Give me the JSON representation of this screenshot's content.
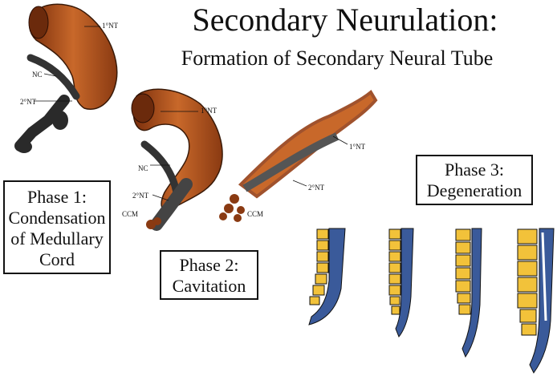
{
  "title": "Secondary Neurulation:",
  "subtitle": "Formation of Secondary Neural Tube",
  "phases": {
    "phase1": {
      "line1": "Phase 1:",
      "line2": "Condensation",
      "line3": "of Medullary",
      "line4": "Cord"
    },
    "phase2": {
      "line1": "Phase 2:",
      "line2": "Cavitation"
    },
    "phase3": {
      "line1": "Phase 3:",
      "line2": "Degeneration"
    }
  },
  "labels": {
    "primary_nt": "1°NT",
    "secondary_nt": "2°NT",
    "nc": "NC",
    "ccm": "CCM"
  },
  "colors": {
    "neural_tube": "#b5561f",
    "notochord": "#555555",
    "vertebra": "#f2c23a",
    "neural_tube_blue": "#3a5a9a"
  }
}
